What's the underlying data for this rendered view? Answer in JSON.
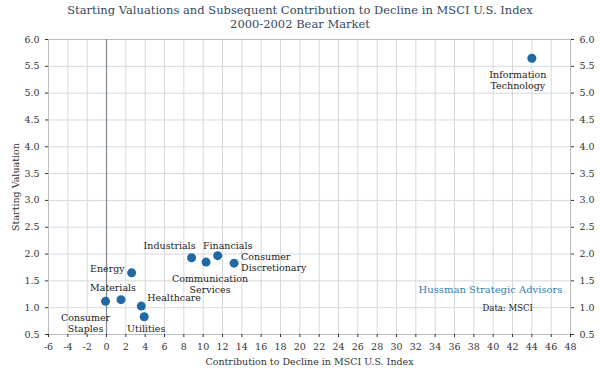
{
  "chart_data": {
    "type": "scatter",
    "title": "Starting Valuations and Subsequent Contribution to Decline in MSCI U.S. Index",
    "subtitle": "2000-2002 Bear Market",
    "x_label": "Contribution to Decline in MSCI U.S. Index",
    "y_label": "Starting Valuation",
    "categories": [
      "Information\nTechnology",
      "Financials",
      "Industrials",
      "Communication\nServices",
      "Consumer\nDiscretionary",
      "Energy",
      "Materials",
      "Consumer\nStaples",
      "Healthcare",
      "Utilities"
    ],
    "x": [
      44,
      11.5,
      8.8,
      10.3,
      13.2,
      2.6,
      1.5,
      -0.1,
      3.6,
      3.9
    ],
    "values": [
      5.65,
      1.97,
      1.93,
      1.85,
      1.83,
      1.65,
      1.15,
      1.12,
      1.03,
      0.83
    ],
    "color": "#1f6aa5",
    "marker": "circle",
    "xlim": [
      -6,
      48
    ],
    "ylim": [
      0.5,
      6.0
    ],
    "xticks": [
      -6,
      -4,
      -2,
      0,
      2,
      4,
      6,
      8,
      10,
      12,
      14,
      16,
      18,
      20,
      22,
      24,
      26,
      28,
      30,
      32,
      34,
      36,
      38,
      40,
      42,
      44,
      46,
      48
    ],
    "yticks": [
      {
        "value": 0.5,
        "label": "0.5"
      },
      {
        "value": 1.0,
        "label": "1.0"
      },
      {
        "value": 1.5,
        "label": "1.5"
      },
      {
        "value": 2.0,
        "label": "2.0"
      },
      {
        "value": 2.5,
        "label": "2.5"
      },
      {
        "value": 3.0,
        "label": "3.0"
      },
      {
        "value": 3.5,
        "label": "3.5"
      },
      {
        "value": 4.0,
        "label": "4.0"
      },
      {
        "value": 4.5,
        "label": "4.5"
      },
      {
        "value": 5.0,
        "label": "5.0"
      },
      {
        "value": 5.5,
        "label": "5.5"
      },
      {
        "value": 6.0,
        "label": "6.0"
      }
    ],
    "grid": true,
    "annotations": [
      "Hussman Strategic Advisors",
      "Data: MSCI"
    ]
  }
}
